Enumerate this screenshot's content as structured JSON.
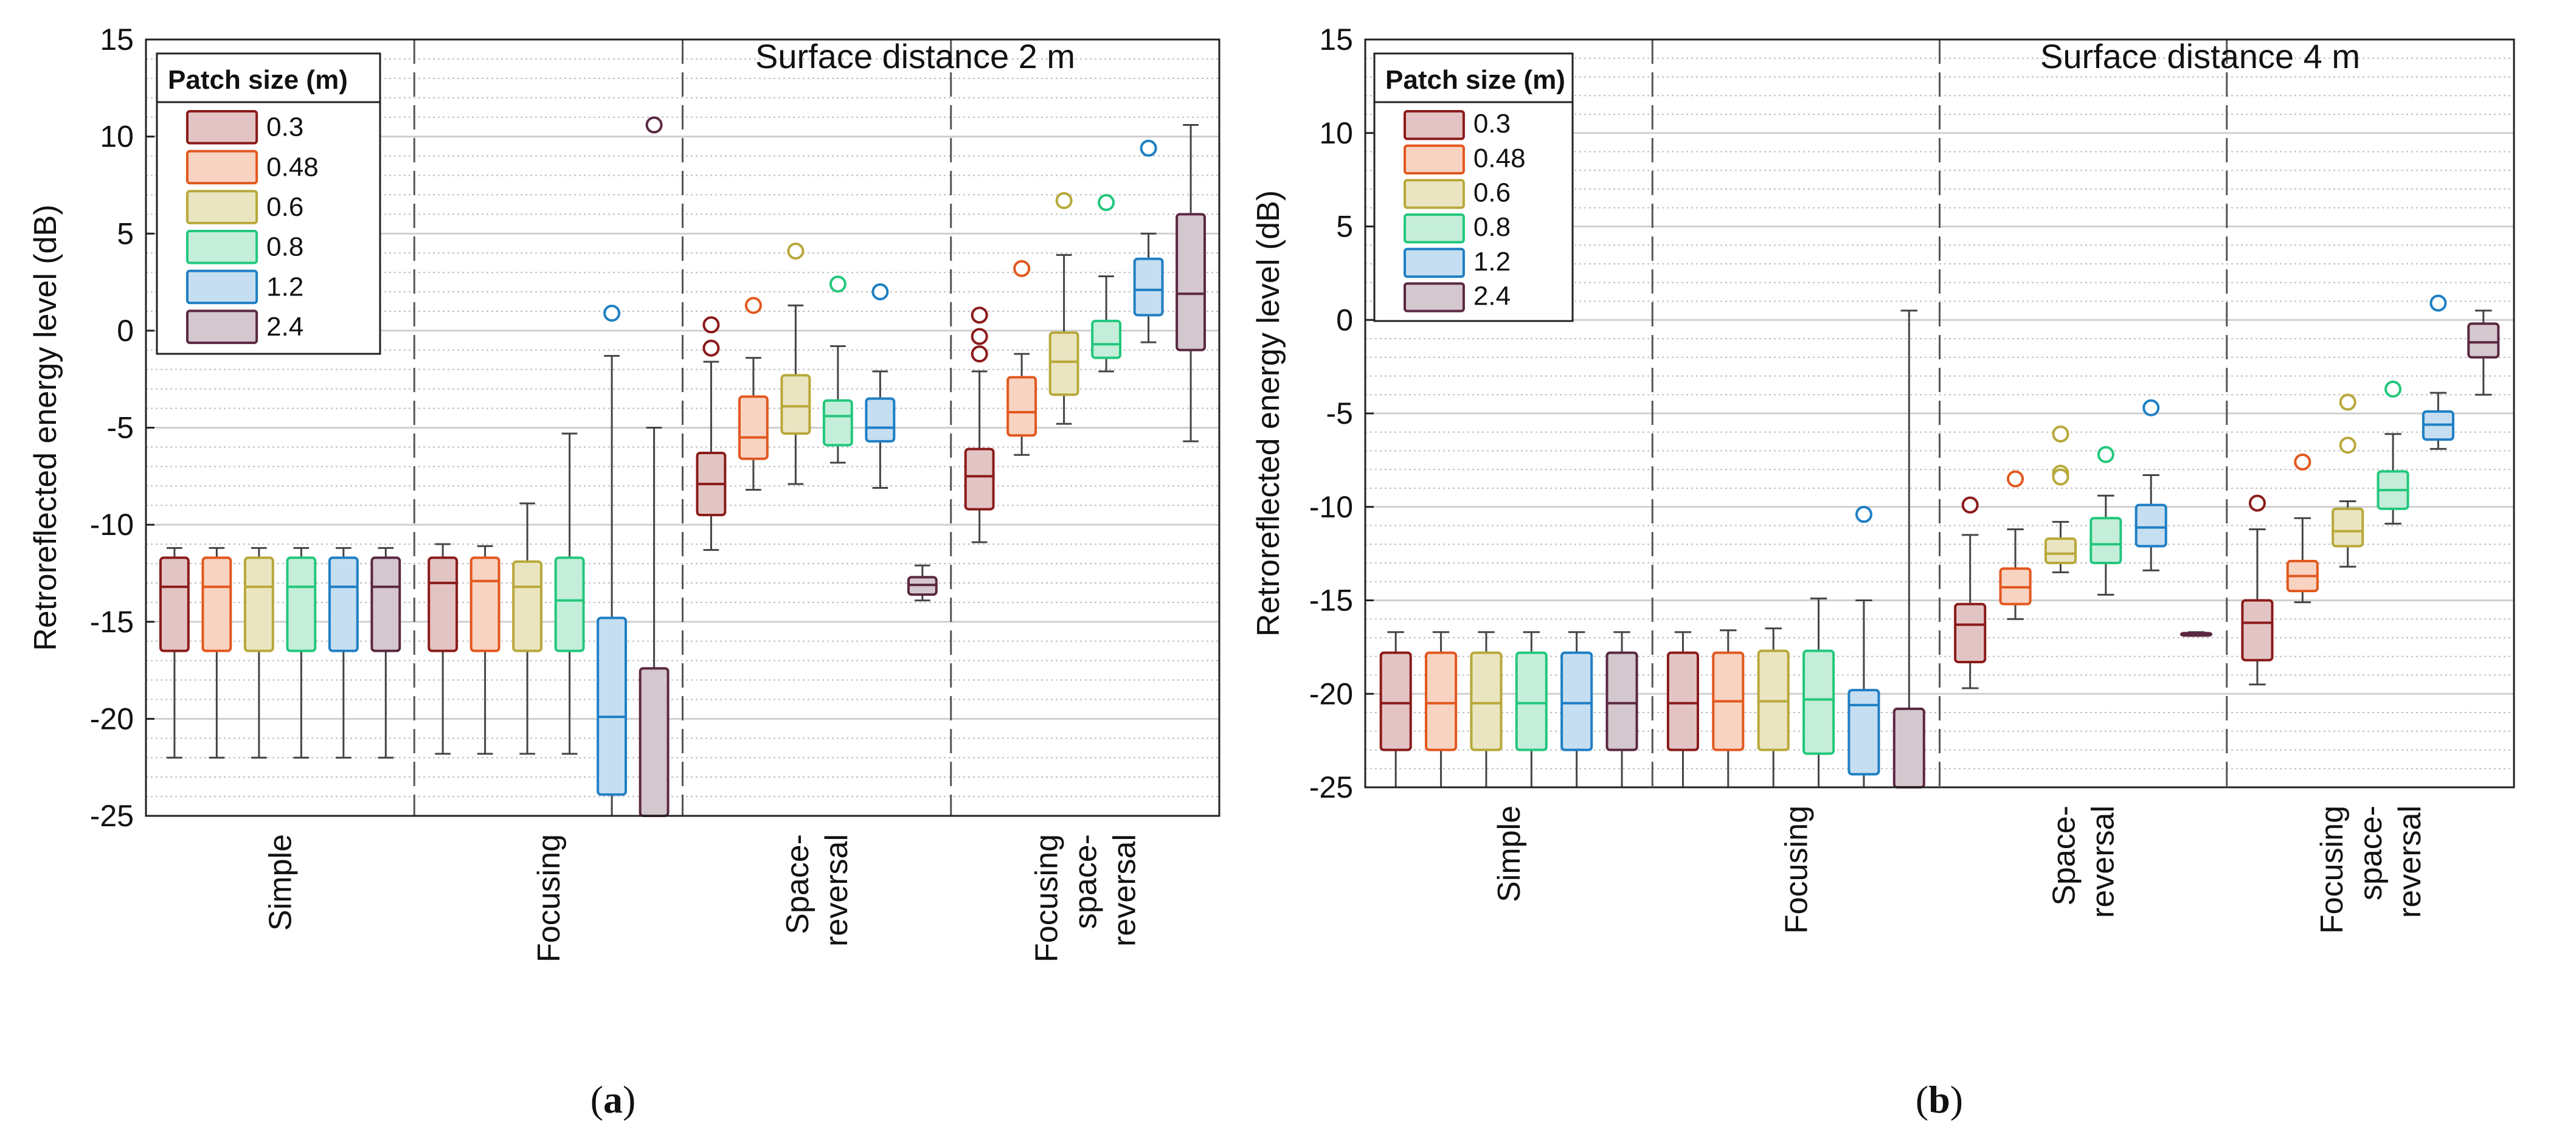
{
  "chart_data": [
    {
      "panel_label": "a",
      "type": "boxplot",
      "title": "Surface distance 2 m",
      "ylabel": "Retroreflected energy level (dB)",
      "ylim": [
        -25,
        15
      ],
      "yticks": [
        15,
        10,
        5,
        0,
        -5,
        -10,
        -15,
        -20,
        -25
      ],
      "yticklabels": [
        "15",
        "10",
        "5",
        "0",
        "-5",
        "-10",
        "-15",
        "-20",
        "-25"
      ],
      "grid": true,
      "legend": {
        "title": "Patch size (m)",
        "position": "top-left"
      },
      "groups": [
        {
          "label": [
            "Simple"
          ]
        },
        {
          "label": [
            "Focusing"
          ]
        },
        {
          "label": [
            "Space-",
            "reversal"
          ]
        },
        {
          "label": [
            "Focusing",
            "space-",
            "reversal"
          ]
        }
      ],
      "series": [
        {
          "name": "0.3",
          "color": "#8b1a1a",
          "fill": "#e3c4c4"
        },
        {
          "name": "0.48",
          "color": "#e2571e",
          "fill": "#f8d3c1"
        },
        {
          "name": "0.6",
          "color": "#b8a83a",
          "fill": "#eae5c0"
        },
        {
          "name": "0.8",
          "color": "#22c77c",
          "fill": "#c4eed9"
        },
        {
          "name": "1.2",
          "color": "#1e7fc4",
          "fill": "#c6def1"
        },
        {
          "name": "2.4",
          "color": "#5a2840",
          "fill": "#d4c7cd"
        }
      ],
      "boxes": [
        [
          [
            -22,
            -16.5,
            -13.2,
            -11.7,
            -11.2,
            []
          ],
          [
            -22,
            -16.5,
            -13.2,
            -11.7,
            -11.2,
            []
          ],
          [
            -22,
            -16.5,
            -13.2,
            -11.7,
            -11.2,
            []
          ],
          [
            -22,
            -16.5,
            -13.2,
            -11.7,
            -11.2,
            []
          ],
          [
            -22,
            -16.5,
            -13.2,
            -11.7,
            -11.2,
            []
          ],
          [
            -22,
            -16.5,
            -13.2,
            -11.7,
            -11.2,
            []
          ]
        ],
        [
          [
            -21.8,
            -16.5,
            -13,
            -11.7,
            -11,
            []
          ],
          [
            -21.8,
            -16.5,
            -12.9,
            -11.7,
            -11.1,
            []
          ],
          [
            -21.8,
            -16.5,
            -13.2,
            -11.9,
            -8.9,
            []
          ],
          [
            -21.8,
            -16.5,
            -13.9,
            -11.7,
            -5.3,
            []
          ],
          [
            -25,
            -23.9,
            -19.9,
            -14.8,
            -1.3,
            [
              0.9
            ]
          ],
          [
            -25,
            -25,
            -25,
            -17.4,
            -5,
            [
              10.6
            ]
          ]
        ],
        [
          [
            -11.3,
            -9.5,
            -7.9,
            -6.3,
            -1.6,
            [
              0.3,
              -0.9
            ]
          ],
          [
            -8.2,
            -6.6,
            -5.5,
            -3.4,
            -1.4,
            [
              1.3
            ]
          ],
          [
            -7.9,
            -5.3,
            -3.9,
            -2.3,
            1.3,
            [
              4.1
            ]
          ],
          [
            -6.8,
            -5.9,
            -4.4,
            -3.6,
            -0.8,
            [
              2.4
            ]
          ],
          [
            -8.1,
            -5.7,
            -5,
            -3.5,
            -2.1,
            [
              2
            ]
          ],
          [
            -13.9,
            -13.6,
            -13.1,
            -12.7,
            -12.1,
            []
          ]
        ],
        [
          [
            -10.9,
            -9.2,
            -7.5,
            -6.1,
            -2.1,
            [
              0.8,
              -0.3,
              -1.2
            ]
          ],
          [
            -6.4,
            -5.4,
            -4.2,
            -2.4,
            -1.2,
            [
              3.2
            ]
          ],
          [
            -4.8,
            -3.3,
            -1.6,
            -0.1,
            3.9,
            [
              6.7
            ]
          ],
          [
            -2.1,
            -1.4,
            -0.7,
            0.5,
            2.8,
            [
              6.6
            ]
          ],
          [
            -0.6,
            0.8,
            2.1,
            3.7,
            5,
            [
              9.4
            ]
          ],
          [
            -5.7,
            -1,
            1.9,
            6,
            10.6,
            []
          ]
        ]
      ]
    },
    {
      "panel_label": "b",
      "type": "boxplot",
      "title": "Surface distance 4 m",
      "ylabel": "Retroreflected energy level (dB)",
      "ylim": [
        -25,
        15
      ],
      "yticks": [
        15,
        10,
        5,
        0,
        -5,
        -10,
        -15,
        -20,
        -25
      ],
      "yticklabels": [
        "15",
        "10",
        "5",
        "0",
        "-5",
        "-10",
        "-15",
        "-20",
        "-25"
      ],
      "grid": true,
      "legend": {
        "title": "Patch size (m)",
        "position": "top-left"
      },
      "groups": [
        {
          "label": [
            "Simple"
          ]
        },
        {
          "label": [
            "Focusing"
          ]
        },
        {
          "label": [
            "Space-",
            "reversal"
          ]
        },
        {
          "label": [
            "Focusing",
            "space-",
            "reversal"
          ]
        }
      ],
      "series": [
        {
          "name": "0.3",
          "color": "#8b1a1a",
          "fill": "#e3c4c4"
        },
        {
          "name": "0.48",
          "color": "#e2571e",
          "fill": "#f8d3c1"
        },
        {
          "name": "0.6",
          "color": "#b8a83a",
          "fill": "#eae5c0"
        },
        {
          "name": "0.8",
          "color": "#22c77c",
          "fill": "#c4eed9"
        },
        {
          "name": "1.2",
          "color": "#1e7fc4",
          "fill": "#c6def1"
        },
        {
          "name": "2.4",
          "color": "#5a2840",
          "fill": "#d4c7cd"
        }
      ],
      "boxes": [
        [
          [
            -25,
            -23,
            -20.5,
            -17.8,
            -16.7,
            []
          ],
          [
            -25,
            -23,
            -20.5,
            -17.8,
            -16.7,
            []
          ],
          [
            -25,
            -23,
            -20.5,
            -17.8,
            -16.7,
            []
          ],
          [
            -25,
            -23,
            -20.5,
            -17.8,
            -16.7,
            []
          ],
          [
            -25,
            -23,
            -20.5,
            -17.8,
            -16.7,
            []
          ],
          [
            -25,
            -23,
            -20.5,
            -17.8,
            -16.7,
            []
          ]
        ],
        [
          [
            -25,
            -23,
            -20.5,
            -17.8,
            -16.7,
            []
          ],
          [
            -25,
            -23,
            -20.4,
            -17.8,
            -16.6,
            []
          ],
          [
            -25,
            -23,
            -20.4,
            -17.7,
            -16.5,
            []
          ],
          [
            -25,
            -23.2,
            -20.3,
            -17.7,
            -14.9,
            []
          ],
          [
            -25,
            -24.3,
            -20.6,
            -19.8,
            -15,
            [
              -10.4
            ]
          ],
          [
            -25,
            -25,
            -25,
            -20.8,
            0.5,
            []
          ]
        ],
        [
          [
            -19.7,
            -18.3,
            -16.3,
            -15.2,
            -11.5,
            [
              -9.9
            ]
          ],
          [
            -16,
            -15.2,
            -14.3,
            -13.3,
            -11.2,
            [
              -8.5
            ]
          ],
          [
            -13.5,
            -13,
            -12.5,
            -11.7,
            -10.8,
            [
              -6.1,
              -8.2,
              -8.4
            ]
          ],
          [
            -14.7,
            -13,
            -12,
            -10.6,
            -9.4,
            [
              -7.2
            ]
          ],
          [
            -13.4,
            -12.1,
            -11.1,
            -9.9,
            -8.3,
            [
              -4.7
            ]
          ],
          [
            -16.9,
            -16.85,
            -16.8,
            -16.75,
            -16.7,
            []
          ]
        ],
        [
          [
            -19.5,
            -18.2,
            -16.2,
            -15,
            -11.2,
            [
              -9.8
            ]
          ],
          [
            -15.1,
            -14.5,
            -13.7,
            -12.9,
            -10.6,
            [
              -7.6
            ]
          ],
          [
            -13.2,
            -12.1,
            -11.3,
            -10.1,
            -9.7,
            [
              -4.4,
              -6.7
            ]
          ],
          [
            -10.9,
            -10.1,
            -9.1,
            -8.1,
            -6.1,
            [
              -3.7
            ]
          ],
          [
            -6.9,
            -6.4,
            -5.6,
            -4.9,
            -3.9,
            [
              0.9
            ]
          ],
          [
            -4,
            -2,
            -1.2,
            -0.2,
            0.5,
            []
          ]
        ]
      ]
    }
  ]
}
